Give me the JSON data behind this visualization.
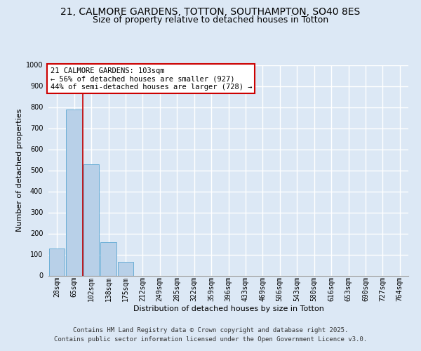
{
  "title_line1": "21, CALMORE GARDENS, TOTTON, SOUTHAMPTON, SO40 8ES",
  "title_line2": "Size of property relative to detached houses in Totton",
  "xlabel": "Distribution of detached houses by size in Totton",
  "ylabel": "Number of detached properties",
  "categories": [
    "28sqm",
    "65sqm",
    "102sqm",
    "138sqm",
    "175sqm",
    "212sqm",
    "249sqm",
    "285sqm",
    "322sqm",
    "359sqm",
    "396sqm",
    "433sqm",
    "469sqm",
    "506sqm",
    "543sqm",
    "580sqm",
    "616sqm",
    "653sqm",
    "690sqm",
    "727sqm",
    "764sqm"
  ],
  "values": [
    130,
    790,
    530,
    160,
    65,
    0,
    0,
    0,
    0,
    0,
    0,
    0,
    0,
    0,
    0,
    0,
    0,
    0,
    0,
    0,
    0
  ],
  "bar_color": "#b8d0e8",
  "bar_edge_color": "#6baed6",
  "property_line_color": "#cc0000",
  "property_line_xindex": 1.5,
  "annotation_text": "21 CALMORE GARDENS: 103sqm\n← 56% of detached houses are smaller (927)\n44% of semi-detached houses are larger (728) →",
  "annotation_box_edge": "#cc0000",
  "bg_color": "#dce8f5",
  "grid_color": "#ffffff",
  "ylim": [
    0,
    1000
  ],
  "yticks": [
    0,
    100,
    200,
    300,
    400,
    500,
    600,
    700,
    800,
    900,
    1000
  ],
  "footer_line1": "Contains HM Land Registry data © Crown copyright and database right 2025.",
  "footer_line2": "Contains public sector information licensed under the Open Government Licence v3.0.",
  "title_fontsize": 10,
  "subtitle_fontsize": 9,
  "axis_label_fontsize": 8,
  "tick_fontsize": 7,
  "annotation_fontsize": 7.5,
  "footer_fontsize": 6.5
}
